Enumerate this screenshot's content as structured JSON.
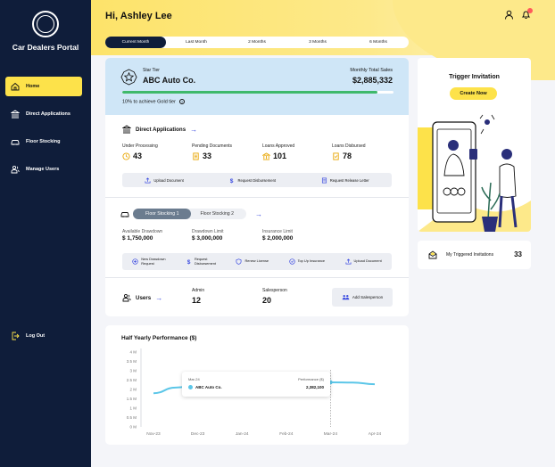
{
  "sidebar": {
    "title": "Car Dealers Portal",
    "items": [
      {
        "label": "Home",
        "icon": "home-icon",
        "active": true
      },
      {
        "label": "Direct Applications",
        "icon": "bank-icon"
      },
      {
        "label": "Floor Stocking",
        "icon": "car-icon"
      },
      {
        "label": "Manage Users",
        "icon": "users-icon"
      }
    ],
    "logout": "Log Out"
  },
  "header": {
    "greeting": "Hi, Ashley Lee"
  },
  "period_tabs": [
    "Current Month",
    "Last Month",
    "2 Months",
    "3 Months",
    "6 Months"
  ],
  "tier": {
    "tier_name": "Star Tier",
    "company": "ABC Auto Co.",
    "sales_label": "Monthly Total Sales",
    "sales_value": "$2,885,332",
    "progress": 0.94,
    "note": "10% to achieve Gold tier",
    "info_glyph": "?"
  },
  "direct_applications": {
    "title": "Direct Applications",
    "stats": [
      {
        "label": "Under Processing",
        "value": "43"
      },
      {
        "label": "Pending Documents",
        "value": "33"
      },
      {
        "label": "Loans Approved",
        "value": "101"
      },
      {
        "label": "Loans Disbursed",
        "value": "78"
      }
    ],
    "actions": [
      "Upload Document",
      "Request Disbursement",
      "Request Release Letter"
    ]
  },
  "floor_stocking": {
    "tabs": [
      "Floor Stocking 1",
      "Floor Stocking 2"
    ],
    "stats": [
      {
        "label": "Available Drawdown",
        "value": "$ 1,750,000"
      },
      {
        "label": "Drawdown Limit",
        "value": "$ 3,000,000"
      },
      {
        "label": "Insurance Limit",
        "value": "$ 2,000,000"
      }
    ],
    "actions": [
      {
        "line1": "New Drawdown",
        "line2": "Request"
      },
      {
        "line1": "Request",
        "line2": "Disbursement"
      },
      {
        "line1": "Renew License",
        "line2": ""
      },
      {
        "line1": "Top Up Insurance",
        "line2": ""
      },
      {
        "line1": "Upload Document",
        "line2": ""
      }
    ]
  },
  "users": {
    "title": "Users",
    "admin_label": "Admin",
    "admin_value": "12",
    "sales_label": "Salesperson",
    "sales_value": "20",
    "add_label": "Add Salesperson"
  },
  "trigger": {
    "title": "Trigger Invitation",
    "button": "Create Now",
    "triggered_label": "My Triggered Invitations",
    "triggered_count": "33"
  },
  "chart_data": {
    "type": "line",
    "title": "Half Yearly Performance ($)",
    "x_tick_labels": [
      "Nov-23",
      "Dec-23",
      "Jan-24",
      "Feb-24",
      "Mar-24",
      "Apr-24"
    ],
    "y_tick_labels": [
      "0 M",
      "0.5 M",
      "1 M",
      "1.5 M",
      "2 M",
      "2.5 M",
      "3 M",
      "3.5 M",
      "4 M"
    ],
    "ylim": [
      0,
      4000000
    ],
    "series": [
      {
        "name": "ABC Auto Co.",
        "color": "#5bc6e8",
        "x": [
          0,
          0.5,
          1,
          1.5,
          2,
          2.5,
          3,
          3.5,
          4,
          4.5,
          5
        ],
        "values": [
          1800000,
          2100000,
          2250000,
          2350000,
          2450000,
          2550000,
          2650000,
          2520000,
          2382100,
          2370000,
          2280000
        ]
      }
    ],
    "tooltip": {
      "date": "Mar-24",
      "value_label": "Performance ($)",
      "name": "ABC Auto Co.",
      "value": "2,382,100"
    },
    "grid": false
  }
}
